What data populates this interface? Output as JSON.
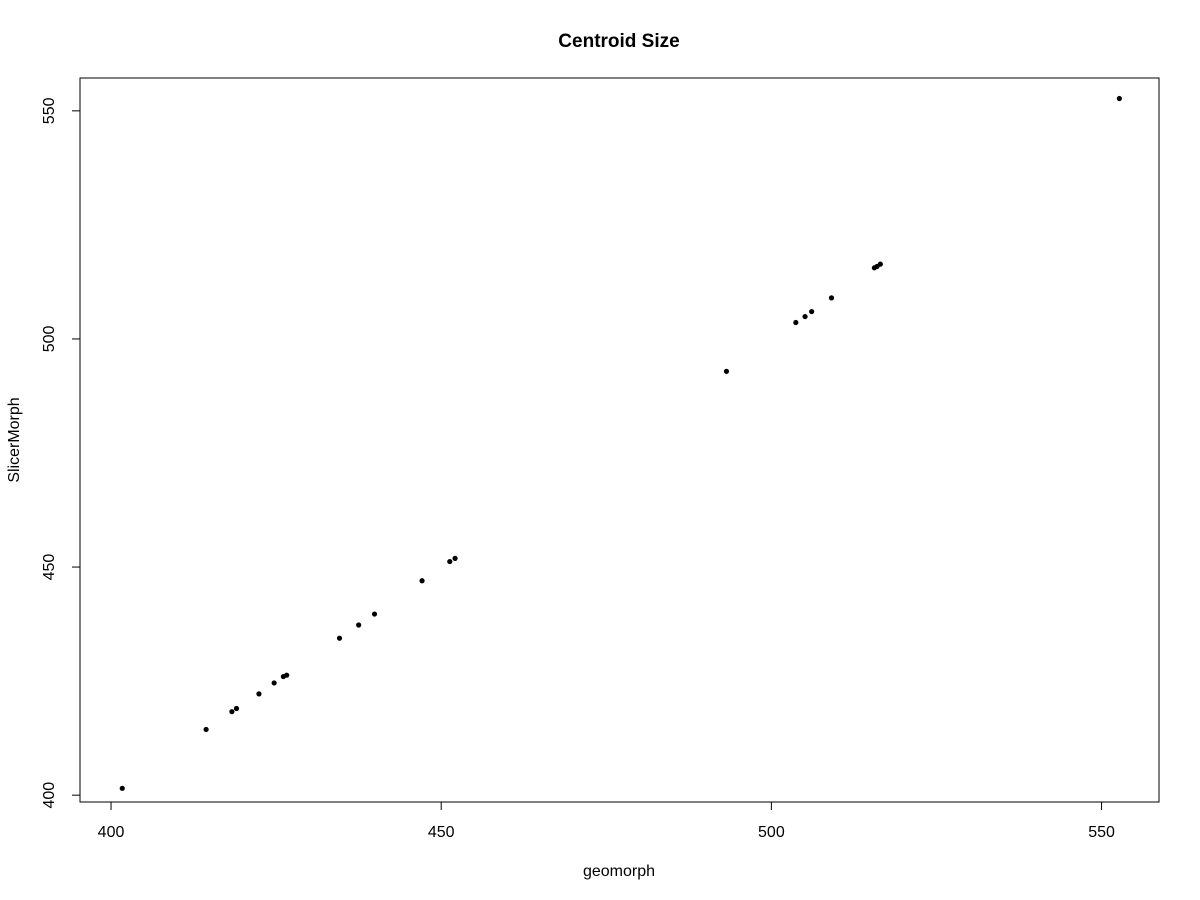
{
  "chart_data": {
    "type": "scatter",
    "title": "Centroid Size",
    "xlabel": "geomorph",
    "ylabel": "SlicerMorph",
    "xlim": [
      395.3,
      558.7
    ],
    "ylim": [
      398.5,
      557.2
    ],
    "x_ticks": [
      400,
      450,
      500,
      550
    ],
    "y_ticks": [
      400,
      450,
      500,
      550
    ],
    "grid": false,
    "point_color": "#000000",
    "points": [
      {
        "x": 401.7,
        "y": 401.5
      },
      {
        "x": 414.4,
        "y": 414.4
      },
      {
        "x": 418.3,
        "y": 418.3
      },
      {
        "x": 419.0,
        "y": 419.0
      },
      {
        "x": 422.4,
        "y": 422.2
      },
      {
        "x": 424.7,
        "y": 424.6
      },
      {
        "x": 426.1,
        "y": 426.0
      },
      {
        "x": 426.6,
        "y": 426.3
      },
      {
        "x": 434.6,
        "y": 434.4
      },
      {
        "x": 437.5,
        "y": 437.3
      },
      {
        "x": 439.9,
        "y": 439.7
      },
      {
        "x": 447.1,
        "y": 447.0
      },
      {
        "x": 451.3,
        "y": 451.2
      },
      {
        "x": 452.1,
        "y": 451.9
      },
      {
        "x": 493.2,
        "y": 492.9
      },
      {
        "x": 503.7,
        "y": 503.6
      },
      {
        "x": 505.1,
        "y": 504.9
      },
      {
        "x": 506.1,
        "y": 506.0
      },
      {
        "x": 509.1,
        "y": 509.0
      },
      {
        "x": 515.6,
        "y": 515.6
      },
      {
        "x": 516.0,
        "y": 515.9
      },
      {
        "x": 516.5,
        "y": 516.4
      },
      {
        "x": 552.7,
        "y": 552.7
      }
    ]
  }
}
